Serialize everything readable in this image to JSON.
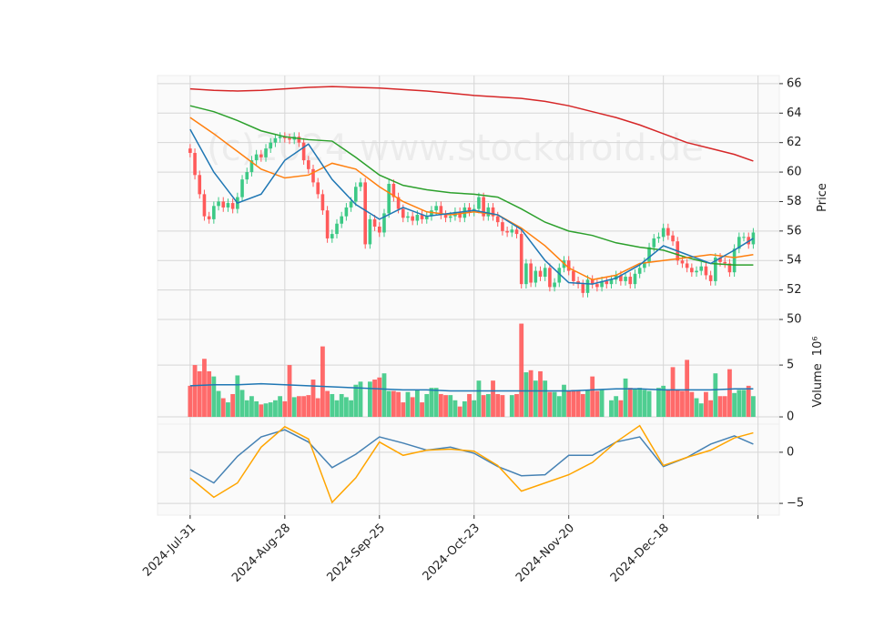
{
  "watermark": "(c)2024 www.stockdroid.de",
  "chart_data": [
    {
      "type": "candlestick",
      "ylabel": "Price",
      "ylim": [
        50,
        66.55
      ],
      "yticks": [
        50,
        52,
        54,
        56,
        58,
        60,
        62,
        64,
        66
      ],
      "xlim": [
        -6.9,
        124.5
      ],
      "grid": true,
      "up_color": "#3cc985",
      "down_color": "#ff5a5a",
      "open": [
        61.6,
        61.3,
        59.8,
        58.5,
        57.0,
        56.8,
        57.7,
        58.0,
        57.6,
        57.9,
        57.5,
        58.3,
        59.5,
        60.0,
        60.8,
        61.2,
        61.0,
        61.6,
        62.0,
        62.3,
        62.4,
        62.3,
        62.2,
        62.4,
        62.0,
        60.8,
        60.2,
        59.3,
        58.5,
        57.4,
        55.5,
        55.8,
        56.5,
        57.0,
        57.6,
        58.0,
        59.0,
        59.3,
        55.1,
        56.8,
        56.3,
        55.9,
        57.2,
        59.2,
        58.3,
        57.5,
        56.9,
        57.0,
        56.7,
        57.1,
        56.8,
        57.0,
        57.4,
        57.7,
        57.1,
        56.9,
        57.0,
        57.3,
        56.9,
        57.6,
        57.3,
        57.5,
        58.3,
        57.0,
        57.6,
        57.0,
        56.6,
        56.0,
        55.9,
        56.1,
        55.8,
        52.4,
        53.8,
        52.5,
        53.3,
        52.9,
        53.5,
        52.2,
        52.5,
        53.5,
        54.0,
        53.3,
        52.6,
        52.4,
        51.8,
        52.7,
        52.4,
        52.2,
        52.6,
        52.4,
        52.7,
        53.0,
        52.6,
        52.9,
        52.4,
        53.1,
        53.5,
        53.9,
        54.9,
        55.5,
        55.6,
        56.2,
        55.7,
        55.3,
        54.0,
        53.8,
        53.5,
        53.2,
        53.3,
        53.6,
        53.0,
        52.6,
        54.2,
        53.9,
        53.8,
        53.2,
        54.8,
        55.6,
        55.6,
        55.1
      ],
      "high": [
        61.9,
        61.6,
        60.1,
        58.8,
        57.3,
        58.0,
        58.3,
        58.3,
        58.2,
        58.2,
        58.6,
        59.8,
        60.3,
        61.1,
        61.5,
        61.5,
        61.9,
        62.3,
        62.6,
        62.7,
        62.7,
        62.6,
        62.7,
        62.7,
        62.3,
        61.1,
        60.5,
        59.6,
        58.8,
        57.7,
        56.1,
        56.8,
        57.3,
        57.9,
        58.3,
        59.3,
        59.6,
        59.6,
        57.1,
        57.1,
        56.6,
        57.5,
        59.5,
        59.5,
        58.6,
        57.8,
        57.3,
        57.3,
        57.4,
        57.4,
        57.3,
        57.7,
        58.0,
        58.0,
        57.4,
        57.3,
        57.6,
        57.6,
        57.9,
        57.9,
        57.8,
        58.6,
        58.6,
        57.9,
        57.9,
        57.3,
        56.9,
        56.3,
        56.4,
        56.4,
        56.1,
        54.1,
        54.1,
        53.6,
        53.6,
        53.8,
        53.8,
        52.8,
        53.8,
        54.3,
        54.3,
        53.6,
        52.9,
        52.7,
        53.0,
        53.0,
        52.7,
        52.9,
        52.9,
        53.0,
        53.3,
        53.3,
        53.2,
        53.2,
        53.4,
        53.8,
        54.2,
        55.2,
        55.8,
        55.9,
        56.5,
        56.5,
        56.0,
        55.6,
        54.3,
        54.1,
        53.8,
        53.6,
        53.9,
        53.9,
        53.3,
        54.5,
        54.5,
        54.2,
        54.1,
        55.1,
        55.9,
        55.9,
        55.9,
        56.2
      ],
      "low": [
        61.0,
        59.5,
        58.2,
        56.7,
        56.5,
        56.5,
        57.4,
        57.3,
        57.3,
        57.2,
        57.2,
        58.0,
        59.2,
        59.7,
        60.5,
        60.7,
        60.7,
        61.3,
        61.7,
        62.0,
        62.0,
        61.9,
        61.9,
        61.7,
        60.5,
        59.9,
        59.0,
        58.2,
        57.1,
        55.2,
        55.2,
        55.5,
        56.2,
        56.7,
        57.3,
        57.7,
        58.7,
        54.8,
        54.8,
        56.0,
        55.6,
        55.6,
        56.9,
        58.0,
        57.2,
        56.6,
        56.6,
        56.4,
        56.4,
        56.5,
        56.5,
        56.7,
        57.1,
        56.8,
        56.6,
        56.6,
        56.7,
        56.6,
        56.6,
        57.0,
        57.0,
        57.2,
        56.7,
        56.7,
        56.7,
        56.3,
        55.7,
        55.6,
        55.6,
        55.5,
        52.1,
        52.1,
        52.2,
        52.2,
        52.6,
        52.6,
        51.9,
        51.9,
        52.2,
        53.2,
        53.0,
        52.3,
        52.1,
        51.5,
        51.5,
        52.1,
        51.9,
        51.9,
        52.1,
        52.1,
        52.4,
        52.3,
        52.3,
        52.1,
        52.1,
        52.8,
        53.2,
        53.6,
        54.6,
        55.2,
        55.3,
        55.4,
        55.0,
        53.7,
        53.5,
        53.2,
        52.9,
        52.9,
        53.0,
        52.7,
        52.3,
        52.3,
        53.6,
        53.5,
        52.9,
        52.9,
        54.5,
        55.3,
        54.8,
        54.8
      ],
      "close": [
        61.3,
        59.8,
        58.5,
        57.0,
        56.8,
        57.7,
        58.0,
        57.6,
        57.9,
        57.5,
        58.3,
        59.5,
        60.0,
        60.8,
        61.2,
        61.0,
        61.6,
        62.0,
        62.3,
        62.4,
        62.3,
        62.2,
        62.4,
        62.0,
        60.8,
        60.2,
        59.3,
        58.5,
        57.4,
        55.5,
        55.8,
        56.5,
        57.0,
        57.6,
        58.0,
        59.0,
        59.3,
        55.1,
        56.8,
        56.3,
        55.9,
        57.2,
        59.2,
        58.3,
        57.5,
        56.9,
        57.0,
        56.7,
        57.1,
        56.8,
        57.0,
        57.4,
        57.7,
        57.1,
        56.9,
        57.0,
        57.3,
        56.9,
        57.6,
        57.3,
        57.5,
        58.3,
        57.0,
        57.6,
        57.0,
        56.6,
        56.0,
        55.9,
        56.1,
        55.8,
        52.4,
        53.8,
        52.5,
        53.3,
        52.9,
        53.5,
        52.2,
        52.5,
        53.5,
        54.0,
        53.3,
        52.6,
        52.4,
        51.8,
        52.7,
        52.4,
        52.2,
        52.6,
        52.4,
        52.7,
        53.0,
        52.6,
        52.9,
        52.4,
        53.1,
        53.5,
        53.9,
        54.9,
        55.5,
        55.6,
        56.2,
        55.7,
        55.3,
        54.0,
        53.8,
        53.5,
        53.2,
        53.3,
        53.6,
        53.0,
        52.6,
        54.2,
        53.9,
        53.8,
        53.2,
        54.8,
        55.6,
        55.6,
        55.1,
        55.9
      ],
      "series": [
        {
          "color": "#d62728",
          "x": [
            0,
            5,
            10,
            15,
            20,
            25,
            30,
            35,
            40,
            45,
            50,
            55,
            60,
            65,
            70,
            75,
            80,
            85,
            90,
            95,
            100,
            105,
            110,
            115,
            119
          ],
          "values": [
            65.65,
            65.55,
            65.5,
            65.55,
            65.65,
            65.75,
            65.8,
            65.75,
            65.7,
            65.6,
            65.5,
            65.35,
            65.2,
            65.1,
            65.0,
            64.8,
            64.5,
            64.1,
            63.7,
            63.2,
            62.6,
            62.0,
            61.6,
            61.2,
            60.75
          ]
        },
        {
          "color": "#2ca02c",
          "x": [
            0,
            5,
            10,
            15,
            20,
            25,
            30,
            35,
            40,
            45,
            50,
            55,
            60,
            65,
            70,
            75,
            80,
            85,
            90,
            95,
            100,
            105,
            110,
            115,
            119
          ],
          "values": [
            64.5,
            64.1,
            63.5,
            62.8,
            62.4,
            62.2,
            62.1,
            61.0,
            59.8,
            59.1,
            58.8,
            58.6,
            58.5,
            58.3,
            57.5,
            56.6,
            56.0,
            55.7,
            55.2,
            54.9,
            54.7,
            54.2,
            53.8,
            53.7,
            53.7
          ]
        },
        {
          "color": "#ff7f0e",
          "x": [
            0,
            5,
            10,
            15,
            20,
            25,
            30,
            35,
            40,
            45,
            50,
            55,
            60,
            65,
            70,
            75,
            80,
            85,
            90,
            95,
            100,
            105,
            110,
            115,
            119
          ],
          "values": [
            63.7,
            62.6,
            61.4,
            60.2,
            59.6,
            59.8,
            60.6,
            60.2,
            59.0,
            58.0,
            57.3,
            57.1,
            57.3,
            57.1,
            56.2,
            55.0,
            53.5,
            52.7,
            53.0,
            53.8,
            54.0,
            54.2,
            54.4,
            54.2,
            54.4
          ]
        },
        {
          "color": "#1f77b4",
          "x": [
            0,
            5,
            10,
            15,
            20,
            25,
            30,
            35,
            40,
            45,
            50,
            55,
            60,
            65,
            70,
            75,
            80,
            85,
            90,
            95,
            100,
            105,
            110,
            115,
            119
          ],
          "values": [
            62.9,
            60.0,
            57.9,
            58.5,
            60.8,
            61.9,
            59.5,
            57.8,
            56.8,
            57.6,
            57.0,
            57.2,
            57.4,
            57.1,
            56.1,
            54.0,
            52.5,
            52.4,
            52.8,
            53.7,
            55.0,
            54.4,
            53.8,
            54.7,
            55.5
          ]
        }
      ]
    },
    {
      "type": "bar",
      "ylabel": "Volume",
      "yoffset": "10⁶",
      "ylim": [
        -0.7,
        9.4
      ],
      "yticks": [
        0,
        5
      ],
      "xlim": [
        -6.9,
        124.5
      ],
      "grid": true,
      "values": [
        3.0,
        5.0,
        4.4,
        5.6,
        4.4,
        3.9,
        2.5,
        1.8,
        1.4,
        2.2,
        4.0,
        2.6,
        1.6,
        2.0,
        1.5,
        1.2,
        1.3,
        1.4,
        1.6,
        2.0,
        1.5,
        5.0,
        1.9,
        2.0,
        2.0,
        2.1,
        3.6,
        1.8,
        6.8,
        2.5,
        2.2,
        1.6,
        2.2,
        1.9,
        1.6,
        3.1,
        3.4,
        0,
        3.4,
        3.6,
        3.8,
        4.2,
        2.5,
        2.5,
        2.4,
        1.4,
        2.4,
        1.9,
        2.6,
        1.4,
        2.2,
        2.8,
        2.8,
        2.2,
        2.1,
        2.1,
        1.6,
        1.0,
        1.5,
        2.2,
        1.6,
        3.5,
        2.1,
        2.2,
        3.5,
        2.2,
        2.1,
        0,
        2.1,
        2.2,
        9.0,
        4.3,
        4.5,
        3.5,
        4.4,
        3.5,
        2.4,
        2.4,
        2.0,
        3.1,
        2.5,
        2.6,
        2.6,
        2.2,
        2.6,
        3.9,
        2.5,
        2.6,
        0,
        1.6,
        2.0,
        1.6,
        3.7,
        2.8,
        2.7,
        2.8,
        2.6,
        2.5,
        0,
        2.8,
        3.0,
        2.6,
        4.8,
        2.6,
        2.5,
        5.5,
        2.4,
        1.8,
        1.3,
        2.4,
        1.6,
        4.2,
        2.0,
        2.0,
        4.6,
        2.3,
        2.6,
        2.6,
        3.0,
        2.0
      ],
      "series": [
        {
          "color": "#1f77b4",
          "x": [
            0,
            5,
            10,
            15,
            20,
            25,
            30,
            35,
            40,
            45,
            50,
            55,
            60,
            65,
            70,
            75,
            80,
            85,
            90,
            95,
            100,
            105,
            110,
            115,
            119
          ],
          "values": [
            3.0,
            3.1,
            3.1,
            3.2,
            3.1,
            3.0,
            2.9,
            2.8,
            2.7,
            2.6,
            2.6,
            2.5,
            2.5,
            2.5,
            2.5,
            2.5,
            2.5,
            2.6,
            2.7,
            2.7,
            2.6,
            2.6,
            2.6,
            2.7,
            2.7
          ]
        }
      ]
    },
    {
      "type": "line",
      "ylim": [
        -6.15,
        2.75
      ],
      "yticks": [
        {
          "value": -5,
          "label": "−5"
        },
        0
      ],
      "xlim": [
        -6.9,
        124.5
      ],
      "grid": true,
      "xticks": [
        {
          "value": 0,
          "label": "2024-Jul-31"
        },
        {
          "value": 20,
          "label": "2024-Aug-28"
        },
        {
          "value": 40,
          "label": "2024-Sep-25"
        },
        {
          "value": 60,
          "label": "2024-Oct-23"
        },
        {
          "value": 80,
          "label": "2024-Nov-20"
        },
        {
          "value": 100,
          "label": "2024-Dec-18"
        },
        {
          "value": 120,
          "label": null
        }
      ],
      "series": [
        {
          "color": "#4682b4",
          "x": [
            0,
            5,
            10,
            15,
            20,
            25,
            30,
            35,
            40,
            45,
            50,
            55,
            60,
            65,
            70,
            75,
            80,
            85,
            90,
            95,
            100,
            105,
            110,
            115,
            119
          ],
          "values": [
            -1.7,
            -3.0,
            -0.4,
            1.5,
            2.2,
            1.0,
            -1.5,
            -0.2,
            1.5,
            0.9,
            0.2,
            0.5,
            -0.1,
            -1.4,
            -2.3,
            -2.2,
            -0.3,
            -0.3,
            1.0,
            1.5,
            -1.4,
            -0.5,
            0.8,
            1.6,
            0.8
          ]
        },
        {
          "color": "#ffa500",
          "x": [
            0,
            5,
            10,
            15,
            20,
            25,
            30,
            35,
            40,
            45,
            50,
            55,
            60,
            65,
            70,
            75,
            80,
            85,
            90,
            95,
            100,
            105,
            110,
            115,
            119
          ],
          "values": [
            -2.5,
            -4.4,
            -3.0,
            0.5,
            2.5,
            1.3,
            -4.9,
            -2.5,
            1.0,
            -0.3,
            0.2,
            0.3,
            0.1,
            -1.3,
            -3.8,
            -3.0,
            -2.2,
            -1.0,
            1.0,
            2.6,
            -1.3,
            -0.5,
            0.2,
            1.4,
            1.9
          ]
        }
      ]
    }
  ]
}
